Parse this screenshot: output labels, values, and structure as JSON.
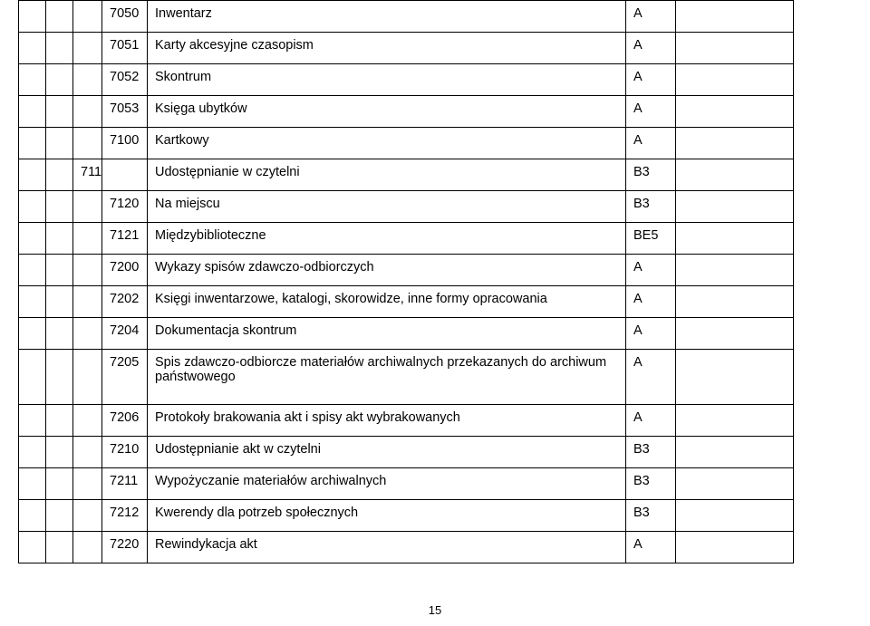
{
  "table": {
    "columns": [
      "c1",
      "c2",
      "c3",
      "c4",
      "c5",
      "c6",
      "c7"
    ],
    "rows": [
      {
        "c1": "",
        "c2": "",
        "c3": "",
        "c4": "7050",
        "c5": "Inwentarz",
        "c6": "A",
        "c7": ""
      },
      {
        "c1": "",
        "c2": "",
        "c3": "",
        "c4": "7051",
        "c5": "Karty akcesyjne czasopism",
        "c6": "A",
        "c7": ""
      },
      {
        "c1": "",
        "c2": "",
        "c3": "",
        "c4": "7052",
        "c5": "Skontrum",
        "c6": "A",
        "c7": ""
      },
      {
        "c1": "",
        "c2": "",
        "c3": "",
        "c4": "7053",
        "c5": "Księga ubytków",
        "c6": "A",
        "c7": ""
      },
      {
        "c1": "",
        "c2": "",
        "c3": "",
        "c4": "7100",
        "c5": "Kartkowy",
        "c6": "A",
        "c7": ""
      },
      {
        "c1": "",
        "c2": "",
        "c3": "711",
        "c4": "",
        "c5": "Udostępnianie w czytelni",
        "c6": "B3",
        "c7": ""
      },
      {
        "c1": "",
        "c2": "",
        "c3": "",
        "c4": "7120",
        "c5": "Na miejscu",
        "c6": "B3",
        "c7": ""
      },
      {
        "c1": "",
        "c2": "",
        "c3": "",
        "c4": "7121",
        "c5": "Międzybiblioteczne",
        "c6": "BE5",
        "c7": ""
      },
      {
        "c1": "",
        "c2": "",
        "c3": "",
        "c4": "7200",
        "c5": "Wykazy spisów zdawczo-odbiorczych",
        "c6": "A",
        "c7": ""
      },
      {
        "c1": "",
        "c2": "",
        "c3": "",
        "c4": "7202",
        "c5": "Księgi inwentarzowe, katalogi, skorowidze, inne formy opracowania",
        "c6": "A",
        "c7": ""
      },
      {
        "c1": "",
        "c2": "",
        "c3": "",
        "c4": "7204",
        "c5": "Dokumentacja skontrum",
        "c6": "A",
        "c7": ""
      },
      {
        "c1": "",
        "c2": "",
        "c3": "",
        "c4": "7205",
        "c5": "Spis zdawczo-odbiorcze materiałów archiwalnych przekazanych do archiwum państwowego",
        "c6": "A",
        "c7": "",
        "tall": true
      },
      {
        "c1": "",
        "c2": "",
        "c3": "",
        "c4": "7206",
        "c5": "Protokoły brakowania akt i spisy akt wybrakowanych",
        "c6": "A",
        "c7": ""
      },
      {
        "c1": "",
        "c2": "",
        "c3": "",
        "c4": "7210",
        "c5": "Udostępnianie akt w czytelni",
        "c6": "B3",
        "c7": ""
      },
      {
        "c1": "",
        "c2": "",
        "c3": "",
        "c4": "7211",
        "c5": "Wypożyczanie materiałów archiwalnych",
        "c6": "B3",
        "c7": ""
      },
      {
        "c1": "",
        "c2": "",
        "c3": "",
        "c4": "7212",
        "c5": "Kwerendy dla potrzeb społecznych",
        "c6": "B3",
        "c7": ""
      },
      {
        "c1": "",
        "c2": "",
        "c3": "",
        "c4": "7220",
        "c5": "Rewindykacja akt",
        "c6": "A",
        "c7": ""
      }
    ]
  },
  "page_number": "15"
}
